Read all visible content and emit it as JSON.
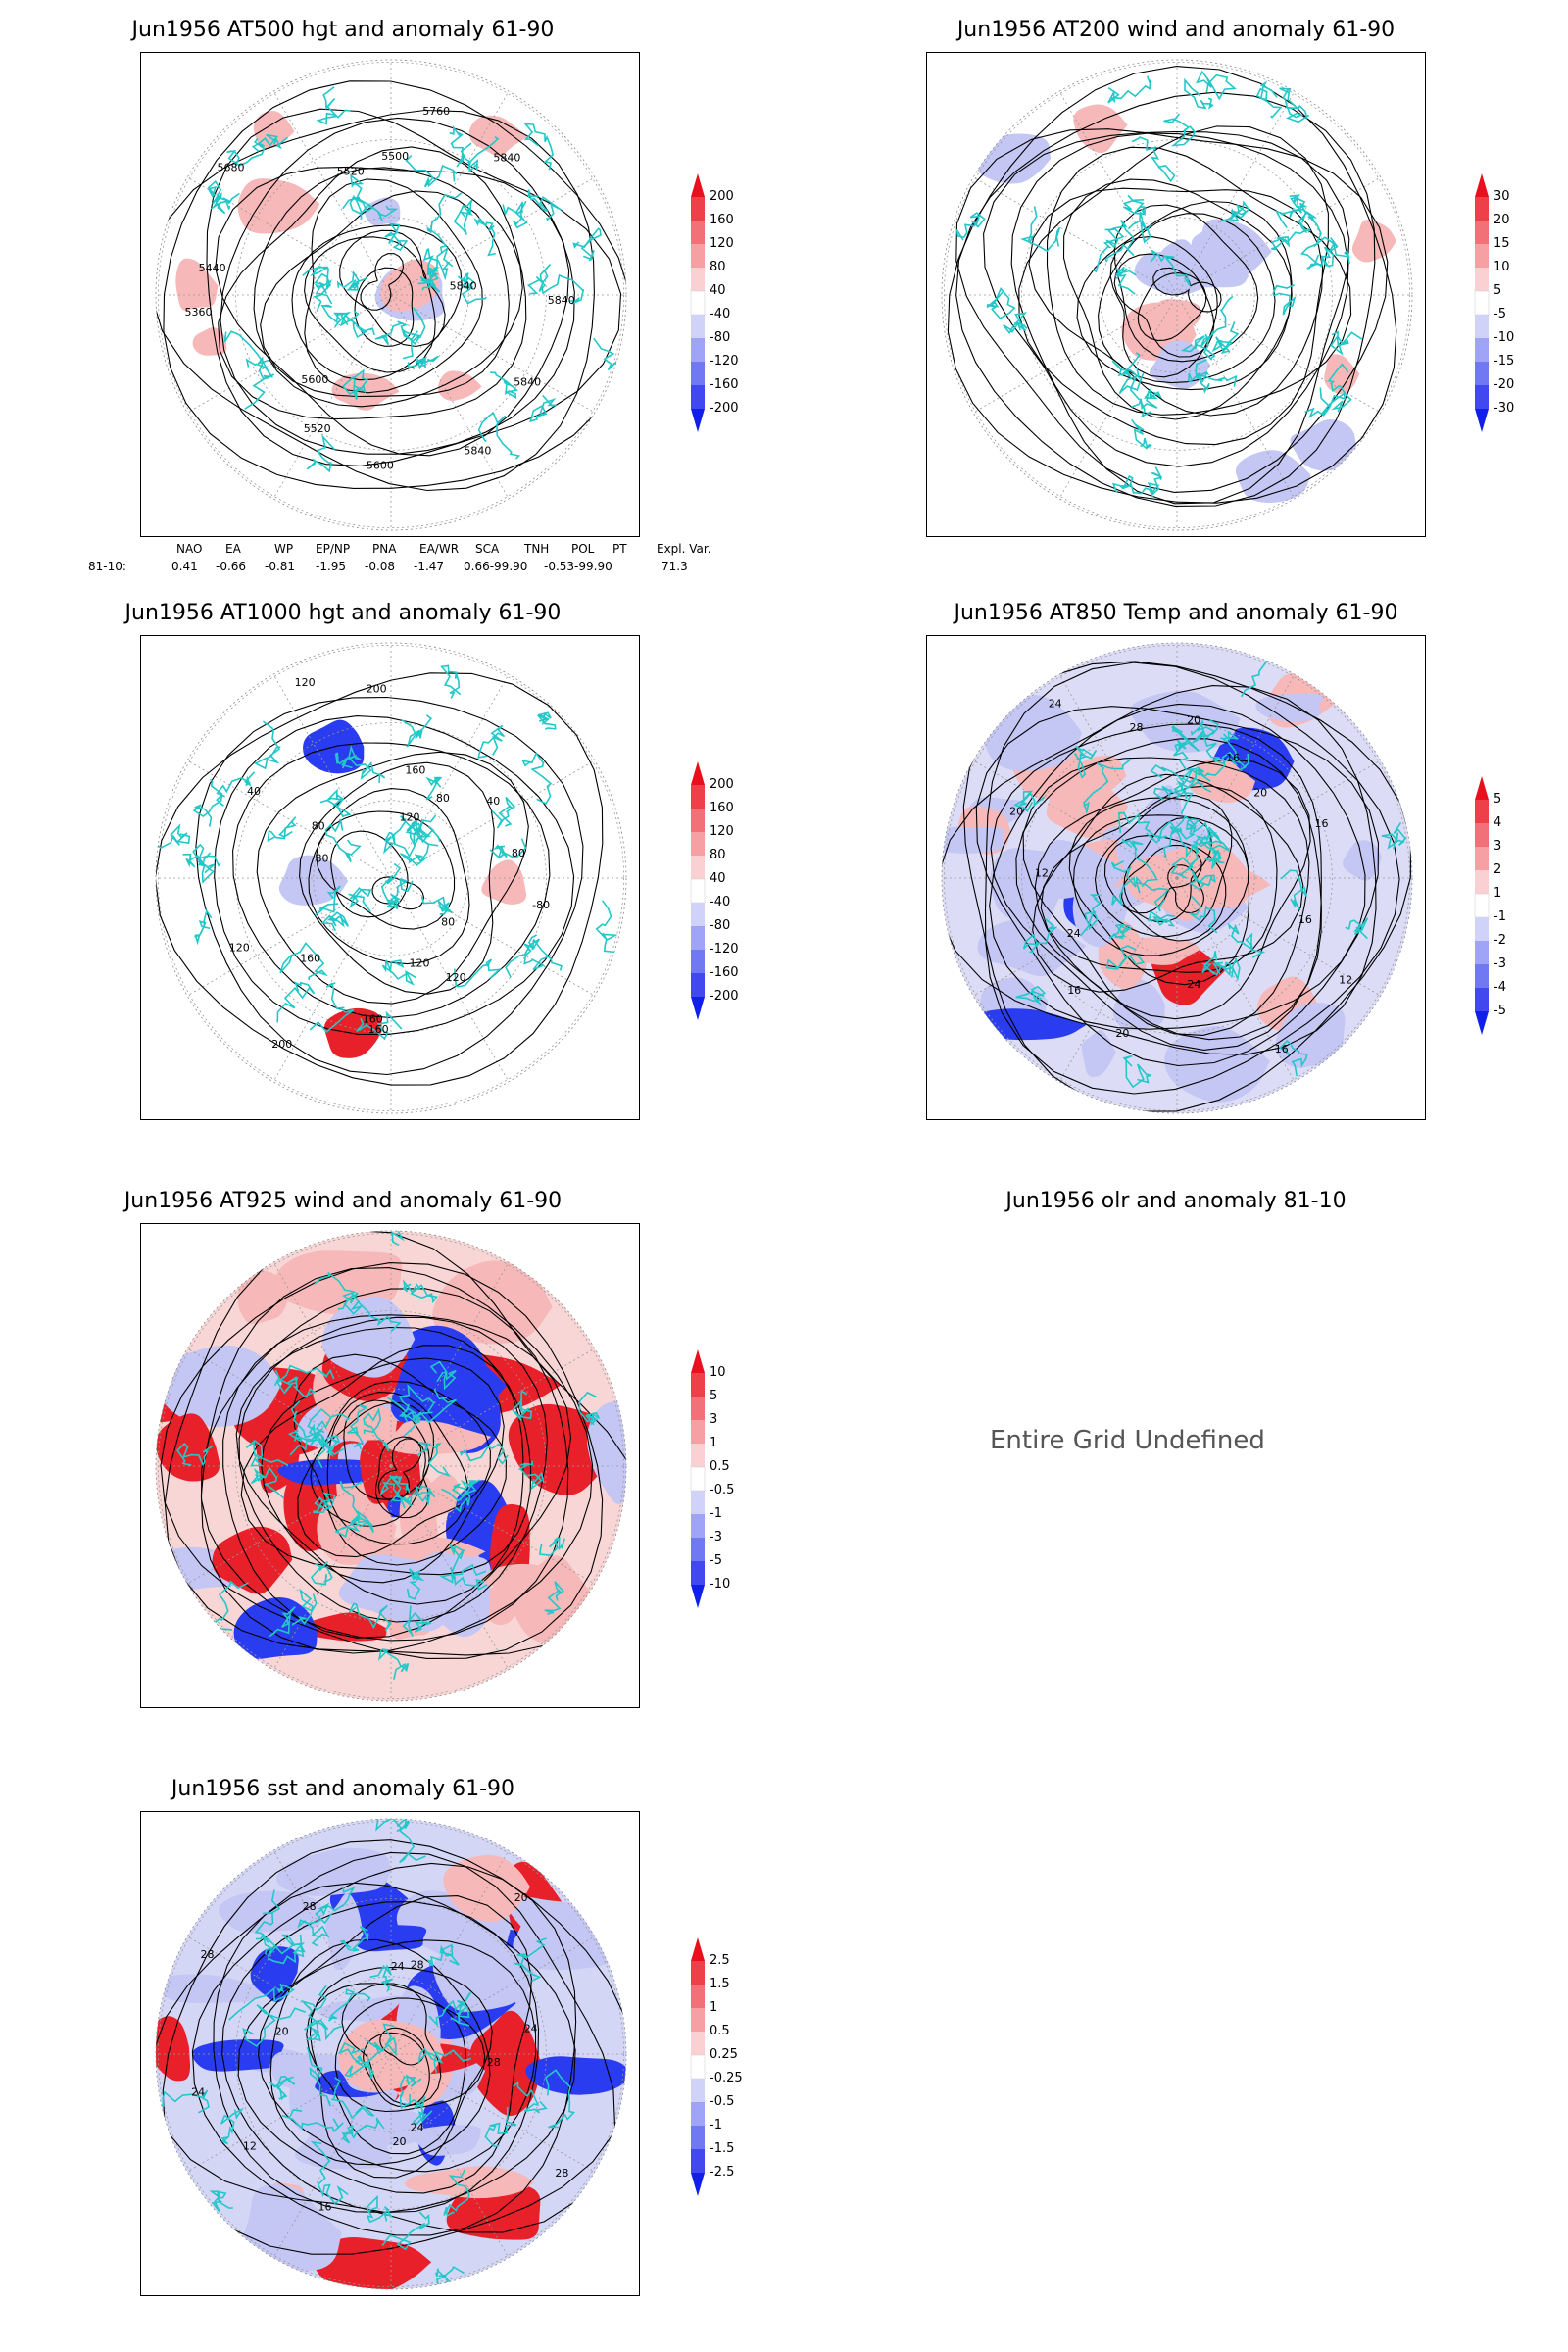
{
  "panels": [
    {
      "id": "p1",
      "title": "Jun1956 AT500 hgt and anomaly 61-90",
      "colorbar": [
        "200",
        "160",
        "120",
        "80",
        "40",
        "-40",
        "-80",
        "-120",
        "-160",
        "-200"
      ],
      "contour_labels": [
        "5840",
        "5840",
        "5840",
        "5600",
        "5520",
        "5600",
        "5360",
        "5440",
        "5680",
        "5520",
        "5500",
        "5760",
        "5840",
        "5840"
      ]
    },
    {
      "id": "p2",
      "title": "Jun1956 AT200 wind and anomaly 61-90",
      "colorbar": [
        "30",
        "20",
        "15",
        "10",
        "5",
        "-5",
        "-10",
        "-15",
        "-20",
        "-30"
      ],
      "contour_labels": []
    },
    {
      "id": "p3",
      "title": "Jun1956 AT1000 hgt and anomaly 61-90",
      "colorbar": [
        "200",
        "160",
        "120",
        "80",
        "40",
        "-40",
        "-80",
        "-120",
        "-160",
        "-200"
      ],
      "contour_labels": [
        "-80",
        "80",
        "120",
        "120",
        "160",
        "160",
        "200",
        "160",
        "120",
        "80",
        "40",
        "80",
        "120",
        "200",
        "160",
        "120",
        "80",
        "40",
        "80"
      ]
    },
    {
      "id": "p4",
      "title": "Jun1956 AT850 Temp and anomaly 61-90",
      "colorbar": [
        "5",
        "4",
        "3",
        "2",
        "1",
        "-1",
        "-2",
        "-3",
        "-4",
        "-5"
      ],
      "contour_labels": [
        "16",
        "12",
        "16",
        "24",
        "20",
        "16",
        "24",
        "12",
        "20",
        "24",
        "28",
        "20",
        "16",
        "20",
        "16"
      ]
    },
    {
      "id": "p5",
      "title": "Jun1956 AT925 wind and anomaly 61-90",
      "colorbar": [
        "10",
        "5",
        "3",
        "1",
        "0.5",
        "-0.5",
        "-1",
        "-3",
        "-5",
        "-10"
      ],
      "contour_labels": []
    },
    {
      "id": "p6",
      "title": "Jun1956 olr and anomaly 81-10",
      "colorbar": [],
      "contour_labels": []
    },
    {
      "id": "p7",
      "title": "Jun1956 sst and anomaly 61-90",
      "colorbar": [
        "2.5",
        "1.5",
        "1",
        "0.5",
        "0.25",
        "-0.25",
        "-0.5",
        "-1",
        "-1.5",
        "-2.5"
      ],
      "contour_labels": [
        "28",
        "28",
        "24",
        "20",
        "16",
        "12",
        "24",
        "20",
        "28",
        "28",
        "24",
        "28",
        "20",
        "24"
      ]
    }
  ],
  "index_table": {
    "headers": [
      "NAO",
      "EA",
      "WP",
      "EP/NP",
      "PNA",
      "EA/WR",
      "SCA",
      "TNH",
      "POL",
      "PT",
      "Expl. Var."
    ],
    "row_label": "81-10:",
    "values": [
      "0.41",
      "-0.66",
      "-0.81",
      "-1.95",
      "-0.08",
      "-1.47",
      "0.66-99.90",
      "-0.53-99.90",
      "71.3"
    ]
  },
  "undefined_message": "Entire Grid Undefined",
  "colors": {
    "coast": "#22c8c8",
    "red_strong": "#e8202a",
    "red_light": "#f6b8b8",
    "blue_strong": "#2a3cf0",
    "blue_light": "#c4c6f4",
    "contour": "#000000"
  }
}
